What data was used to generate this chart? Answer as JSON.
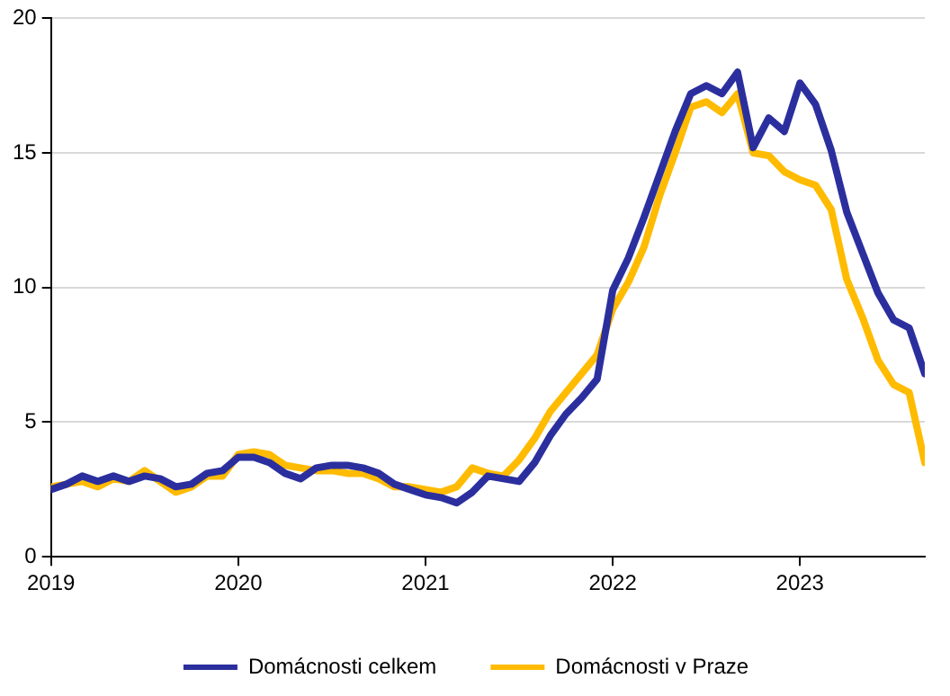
{
  "chart_data": {
    "type": "line",
    "x": [
      "2019-01",
      "2019-02",
      "2019-03",
      "2019-04",
      "2019-05",
      "2019-06",
      "2019-07",
      "2019-08",
      "2019-09",
      "2019-10",
      "2019-11",
      "2019-12",
      "2020-01",
      "2020-02",
      "2020-03",
      "2020-04",
      "2020-05",
      "2020-06",
      "2020-07",
      "2020-08",
      "2020-09",
      "2020-10",
      "2020-11",
      "2020-12",
      "2021-01",
      "2021-02",
      "2021-03",
      "2021-04",
      "2021-05",
      "2021-06",
      "2021-07",
      "2021-08",
      "2021-09",
      "2021-10",
      "2021-11",
      "2021-12",
      "2022-01",
      "2022-02",
      "2022-03",
      "2022-04",
      "2022-05",
      "2022-06",
      "2022-07",
      "2022-08",
      "2022-09",
      "2022-10",
      "2022-11",
      "2022-12",
      "2023-01",
      "2023-02",
      "2023-03",
      "2023-04",
      "2023-05",
      "2023-06",
      "2023-07",
      "2023-08",
      "2023-09"
    ],
    "series": [
      {
        "name": "Domácnosti celkem",
        "color": "#2b2f9e",
        "values": [
          2.5,
          2.7,
          3.0,
          2.8,
          3.0,
          2.8,
          3.0,
          2.9,
          2.6,
          2.7,
          3.1,
          3.2,
          3.7,
          3.7,
          3.5,
          3.1,
          2.9,
          3.3,
          3.4,
          3.4,
          3.3,
          3.1,
          2.7,
          2.5,
          2.3,
          2.2,
          2.0,
          2.4,
          3.0,
          2.9,
          2.8,
          3.5,
          4.5,
          5.3,
          5.9,
          6.6,
          9.9,
          11.1,
          12.6,
          14.2,
          15.8,
          17.2,
          17.5,
          17.2,
          18.0,
          15.2,
          16.3,
          15.8,
          17.6,
          16.8,
          15.1,
          12.8,
          11.3,
          9.8,
          8.8,
          8.5,
          6.8
        ]
      },
      {
        "name": "Domácnosti v Praze",
        "color": "#ffbb00",
        "values": [
          2.6,
          2.7,
          2.8,
          2.6,
          2.9,
          2.8,
          3.2,
          2.8,
          2.4,
          2.6,
          3.0,
          3.0,
          3.8,
          3.9,
          3.8,
          3.4,
          3.3,
          3.2,
          3.2,
          3.1,
          3.1,
          2.9,
          2.6,
          2.6,
          2.5,
          2.4,
          2.6,
          3.3,
          3.1,
          3.0,
          3.6,
          4.4,
          5.4,
          6.1,
          6.8,
          7.5,
          9.2,
          10.2,
          11.5,
          13.4,
          15.0,
          16.7,
          16.9,
          16.5,
          17.2,
          15.0,
          14.9,
          14.3,
          14.0,
          13.8,
          12.9,
          10.3,
          8.9,
          7.3,
          6.4,
          6.1,
          3.5
        ]
      }
    ],
    "xlim": [
      "2019-01",
      "2023-09"
    ],
    "xticks": [
      "2019",
      "2020",
      "2021",
      "2022",
      "2023"
    ],
    "ylim": [
      0,
      20
    ],
    "yticks": [
      0,
      5,
      10,
      15,
      20
    ],
    "grid": "y",
    "legend": "bottom",
    "marker": "none",
    "line_style": "solid"
  }
}
